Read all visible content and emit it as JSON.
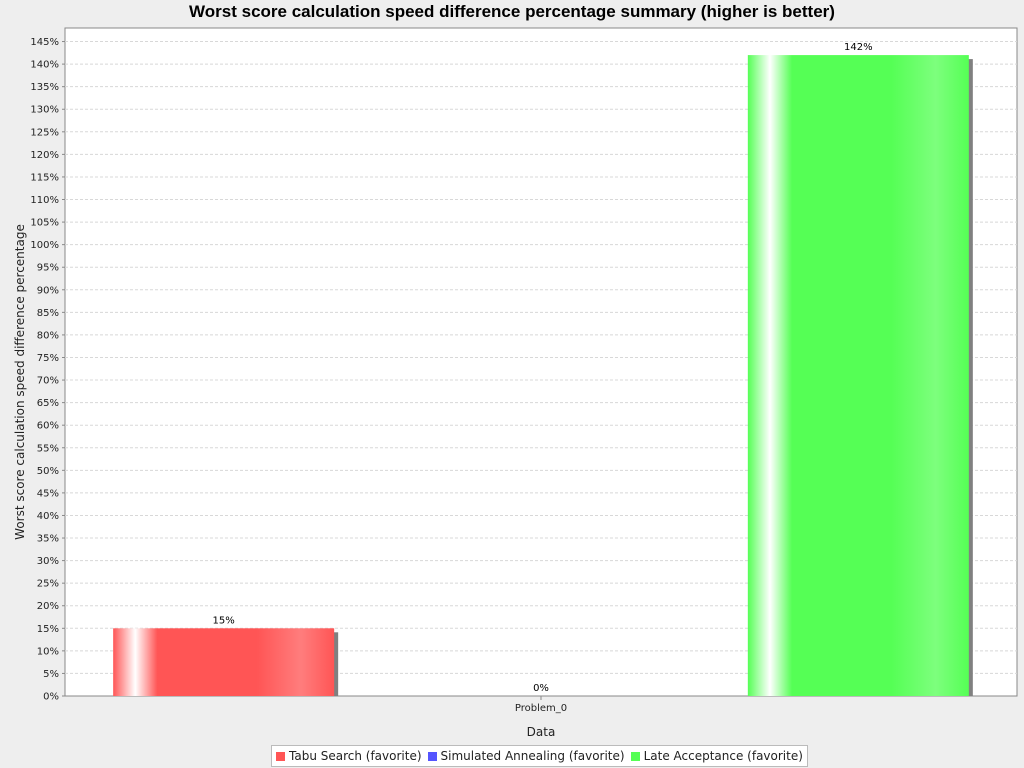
{
  "chart_data": {
    "type": "bar",
    "title": "Worst score calculation speed difference percentage summary (higher is better)",
    "xlabel": "Data",
    "ylabel": "Worst score calculation speed difference percentage",
    "categories": [
      "Problem_0"
    ],
    "series": [
      {
        "name": "Tabu Search (favorite)",
        "values": [
          15
        ],
        "color": "#ff5555",
        "label": "15%"
      },
      {
        "name": "Simulated Annealing (favorite)",
        "values": [
          0
        ],
        "color": "#5555ff",
        "label": "0%"
      },
      {
        "name": "Late Acceptance (favorite)",
        "values": [
          142
        ],
        "color": "#55ff55",
        "label": "142%"
      }
    ],
    "ylim": [
      0,
      148
    ],
    "y_ticks": [
      0,
      5,
      10,
      15,
      20,
      25,
      30,
      35,
      40,
      45,
      50,
      55,
      60,
      65,
      70,
      75,
      80,
      85,
      90,
      95,
      100,
      105,
      110,
      115,
      120,
      125,
      130,
      135,
      140,
      145
    ],
    "y_tick_suffix": "%",
    "grid": true,
    "legend_position": "bottom"
  }
}
